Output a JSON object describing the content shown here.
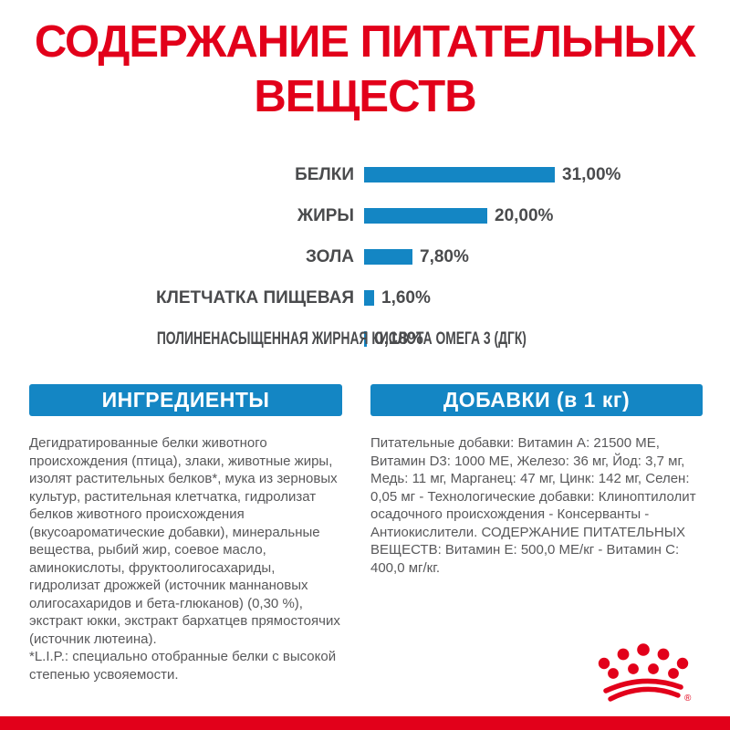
{
  "title": "СОДЕРЖАНИЕ ПИТАТЕЛЬНЫХ ВЕЩЕСТВ",
  "colors": {
    "red": "#e2001a",
    "blue": "#1486c4",
    "label_gray": "#4a4b4d",
    "body_gray": "#58585a"
  },
  "chart_data": {
    "type": "bar",
    "orientation": "horizontal",
    "title": "СОДЕРЖАНИЕ ПИТАТЕЛЬНЫХ ВЕЩЕСТВ",
    "categories": [
      "БЕЛКИ",
      "ЖИРЫ",
      "ЗОЛА",
      "КЛЕТЧАТКА ПИЩЕВАЯ",
      "ПОЛИНЕНАСЫЩЕННАЯ ЖИРНАЯ КИСЛОТА ОМЕГА 3 (ДГК)"
    ],
    "values": [
      31.0,
      20.0,
      7.8,
      1.6,
      0.18
    ],
    "value_labels": [
      "31,00%",
      "20,00%",
      "7,80%",
      "1,60%",
      "0,18%"
    ],
    "unit": "%",
    "xlim": [
      0,
      31
    ],
    "grid": false,
    "legend": false,
    "bar_color": "#1486c4"
  },
  "ingredients": {
    "header": "ИНГРЕДИЕНТЫ",
    "text": "Дегидратированные белки животного происхождения (птица), злаки, животные жиры, изолят растительных белков*, мука из зерновых культур, растительная клетчатка, гидролизат белков животного происхождения (вкусоароматические добавки), минеральные вещества, рыбий жир, соевое масло, аминокислоты, фруктоолигосахариды, гидролизат дрожжей (источник маннановых олигосахаридов и бета-глюканов) (0,30 %), экстракт юкки, экстракт бархатцев прямостоячих (источник лютеина).",
    "note": "*L.I.P.: специально отобранные белки с высокой степенью усвояемости."
  },
  "additives": {
    "header": "ДОБАВКИ (в 1 кг)",
    "text": "Питательные добавки: Витамин А: 21500 МЕ, Витамин D3: 1000 МЕ, Железо: 36 мг, Йод: 3,7 мг, Медь: 11 мг, Марганец: 47 мг, Цинк: 142 мг, Селен: 0,05 мг - Технологические добавки: Клиноптилолит осадочного происхождения - Консерванты - Антиокислители. СОДЕРЖАНИЕ ПИТАТЕЛЬНЫХ ВЕЩЕСТВ: Витамин Е: 500,0 МЕ/кг - Витамин С: 400,0 мг/кг."
  },
  "logo": {
    "name": "royal-canin-crown",
    "registered_mark": "®"
  }
}
